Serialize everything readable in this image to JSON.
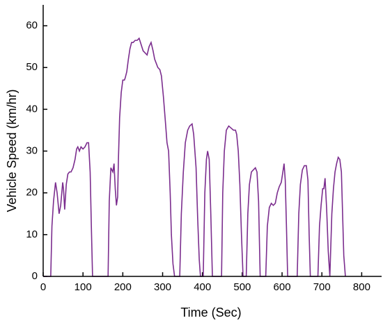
{
  "chart_data": {
    "type": "line",
    "x_label": "Time (Sec)",
    "y_label": "Vehicle Speed (km/hr)",
    "color": "#7b2d8e",
    "x": [
      0,
      19,
      22,
      26,
      31,
      35,
      40,
      44,
      49,
      51,
      54,
      58,
      62,
      66,
      70,
      75,
      80,
      84,
      87,
      91,
      95,
      100,
      105,
      110,
      114,
      118,
      121,
      124,
      163,
      166,
      170,
      175,
      178,
      181,
      184,
      187,
      189,
      192,
      196,
      200,
      204,
      206,
      210,
      214,
      218,
      222,
      226,
      231,
      236,
      241,
      246,
      251,
      256,
      261,
      266,
      271,
      276,
      280,
      284,
      288,
      293,
      297,
      302,
      307,
      311,
      315,
      319,
      322,
      326,
      330,
      343,
      347,
      352,
      357,
      363,
      368,
      374,
      378,
      384,
      388,
      392,
      395,
      402,
      406,
      410,
      413,
      417,
      421,
      425,
      448,
      451,
      455,
      460,
      466,
      472,
      478,
      483,
      486,
      490,
      494,
      498,
      502,
      510,
      514,
      518,
      523,
      528,
      533,
      537,
      541,
      545,
      559,
      563,
      568,
      573,
      578,
      583,
      588,
      593,
      598,
      602,
      605,
      608,
      611,
      614,
      638,
      642,
      646,
      651,
      656,
      661,
      665,
      668,
      671,
      690,
      694,
      698,
      702,
      705,
      708,
      712,
      716,
      720,
      725,
      729,
      733,
      737,
      741,
      745,
      749,
      752,
      755,
      759
    ],
    "values": [
      0,
      0,
      12,
      18,
      22.5,
      20,
      15,
      17,
      22.5,
      21,
      16,
      22,
      24.5,
      25,
      25,
      26,
      28,
      30.5,
      31,
      30,
      31,
      30.5,
      31,
      32,
      32,
      25,
      12,
      0,
      0,
      18,
      26,
      25,
      27,
      21,
      17,
      19,
      28,
      38,
      44,
      47,
      47,
      47.5,
      49,
      52,
      54.5,
      56,
      56,
      56.5,
      56.5,
      57,
      55.5,
      54,
      53.5,
      53,
      55,
      56,
      54,
      52,
      51,
      50,
      49.5,
      48,
      43,
      37,
      32,
      30,
      20,
      10,
      3,
      0,
      0,
      15,
      25,
      32,
      35,
      36,
      36.5,
      34,
      26,
      14,
      4,
      0,
      0,
      20,
      28,
      30,
      28,
      15,
      0,
      0,
      20,
      30,
      35,
      36,
      35.5,
      35,
      35,
      34,
      30,
      22,
      10,
      0,
      0,
      15,
      22,
      25,
      25.5,
      26,
      25,
      18,
      0,
      0,
      12,
      16.5,
      17.5,
      17,
      17.5,
      20,
      21.5,
      22.5,
      25,
      27,
      23,
      12,
      0,
      0,
      15,
      22,
      25.5,
      26.5,
      26.5,
      23,
      10,
      0,
      0,
      12,
      17,
      21,
      21,
      23.5,
      16,
      6,
      0,
      15,
      21,
      25,
      27,
      28.5,
      28,
      25,
      15,
      5,
      0
    ],
    "xlim": [
      0,
      850
    ],
    "xticks": [
      0,
      100,
      200,
      300,
      400,
      500,
      600,
      700,
      800
    ],
    "ylim": [
      0,
      65
    ],
    "yticks": [
      0,
      10,
      20,
      30,
      40,
      50,
      60
    ]
  }
}
